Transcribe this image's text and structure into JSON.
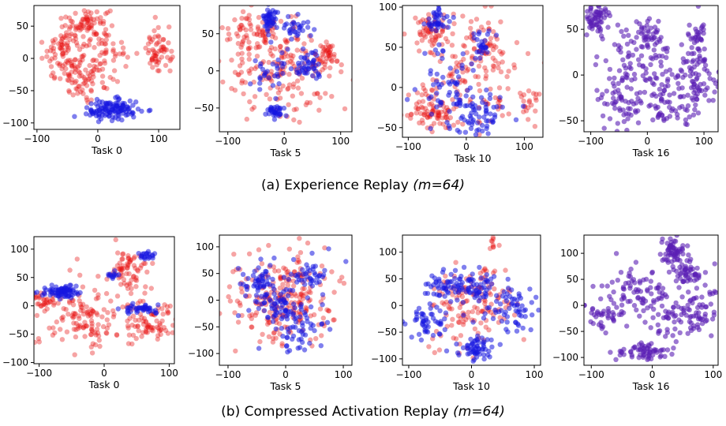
{
  "figure": {
    "row_a_caption": {
      "label": "(a)",
      "name": "Experience Replay",
      "param": "(m=64)"
    },
    "row_b_caption": {
      "label": "(b)",
      "name": "Compressed Activation Replay",
      "param": "(m=64)"
    }
  },
  "chart_data": [
    {
      "type": "scatter",
      "row": "a",
      "xlabel": "Task 0",
      "xlim": [
        -105,
        135
      ],
      "ylim": [
        -110,
        82
      ],
      "xticks": [
        -100,
        0,
        100
      ],
      "yticks": [
        -100,
        -50,
        0,
        50
      ],
      "legend": "none",
      "grid": false,
      "colors": {
        "old": "#e81010",
        "new": "#1616e0"
      },
      "clusters": [
        {
          "group": "old",
          "cx": -15,
          "cy": 55,
          "sx": 18,
          "sy": 12,
          "n": 60
        },
        {
          "group": "old",
          "cx": -55,
          "cy": 15,
          "sx": 18,
          "sy": 22,
          "n": 90
        },
        {
          "group": "old",
          "cx": -20,
          "cy": -30,
          "sx": 25,
          "sy": 15,
          "n": 80
        },
        {
          "group": "old",
          "cx": 100,
          "cy": 10,
          "sx": 10,
          "sy": 18,
          "n": 60
        },
        {
          "group": "old",
          "cx": 20,
          "cy": 25,
          "sx": 22,
          "sy": 18,
          "n": 40
        },
        {
          "group": "new",
          "cx": 25,
          "cy": -80,
          "sx": 22,
          "sy": 8,
          "n": 120
        }
      ]
    },
    {
      "type": "scatter",
      "row": "a",
      "xlabel": "Task 5",
      "xlim": [
        -115,
        120
      ],
      "ylim": [
        -82,
        88
      ],
      "xticks": [
        -100,
        0,
        100
      ],
      "yticks": [
        -50,
        0,
        50
      ],
      "legend": "none",
      "grid": false,
      "colors": {
        "old": "#e81010",
        "new": "#1616e0"
      },
      "clusters": [
        {
          "group": "old",
          "cx": -50,
          "cy": 50,
          "sx": 30,
          "sy": 15,
          "n": 80
        },
        {
          "group": "old",
          "cx": 0,
          "cy": 0,
          "sx": 50,
          "sy": 30,
          "n": 160
        },
        {
          "group": "old",
          "cx": 75,
          "cy": 20,
          "sx": 12,
          "sy": 10,
          "n": 45
        },
        {
          "group": "new",
          "cx": -25,
          "cy": 70,
          "sx": 8,
          "sy": 8,
          "n": 45
        },
        {
          "group": "new",
          "cx": 20,
          "cy": 60,
          "sx": 12,
          "sy": 7,
          "n": 30
        },
        {
          "group": "new",
          "cx": -15,
          "cy": -55,
          "sx": 8,
          "sy": 6,
          "n": 35
        },
        {
          "group": "new",
          "cx": 40,
          "cy": 5,
          "sx": 10,
          "sy": 10,
          "n": 45
        },
        {
          "group": "new",
          "cx": -30,
          "cy": 0,
          "sx": 20,
          "sy": 15,
          "n": 30
        }
      ]
    },
    {
      "type": "scatter",
      "row": "a",
      "xlabel": "Task 10",
      "xlim": [
        -110,
        132
      ],
      "ylim": [
        -62,
        102
      ],
      "xticks": [
        -100,
        0,
        100
      ],
      "yticks": [
        -50,
        0,
        50,
        100
      ],
      "legend": "none",
      "grid": false,
      "colors": {
        "old": "#e81010",
        "new": "#1616e0"
      },
      "clusters": [
        {
          "group": "old",
          "cx": -60,
          "cy": 70,
          "sx": 15,
          "sy": 12,
          "n": 60
        },
        {
          "group": "old",
          "cx": -60,
          "cy": -30,
          "sx": 20,
          "sy": 15,
          "n": 70
        },
        {
          "group": "old",
          "cx": 0,
          "cy": 10,
          "sx": 45,
          "sy": 35,
          "n": 130
        },
        {
          "group": "old",
          "cx": 30,
          "cy": 60,
          "sx": 15,
          "sy": 15,
          "n": 40
        },
        {
          "group": "old",
          "cx": 110,
          "cy": -20,
          "sx": 12,
          "sy": 10,
          "n": 20
        },
        {
          "group": "new",
          "cx": -50,
          "cy": 85,
          "sx": 8,
          "sy": 8,
          "n": 40
        },
        {
          "group": "new",
          "cx": -30,
          "cy": 0,
          "sx": 25,
          "sy": 30,
          "n": 70
        },
        {
          "group": "new",
          "cx": 30,
          "cy": -35,
          "sx": 25,
          "sy": 15,
          "n": 60
        },
        {
          "group": "new",
          "cx": 25,
          "cy": 55,
          "sx": 10,
          "sy": 8,
          "n": 25
        }
      ]
    },
    {
      "type": "scatter",
      "row": "a",
      "xlabel": "Task 16",
      "xlim": [
        -112,
        125
      ],
      "ylim": [
        -62,
        76
      ],
      "xticks": [
        -100,
        0,
        100
      ],
      "yticks": [
        -50,
        0,
        50
      ],
      "legend": "none",
      "grid": false,
      "colors": {
        "old": "#5a1eb4",
        "new": "#5a1eb4"
      },
      "clusters": [
        {
          "group": "old",
          "cx": -90,
          "cy": 60,
          "sx": 10,
          "sy": 8,
          "n": 60
        },
        {
          "group": "old",
          "cx": 0,
          "cy": 45,
          "sx": 10,
          "sy": 10,
          "n": 30
        },
        {
          "group": "old",
          "cx": -30,
          "cy": 20,
          "sx": 25,
          "sy": 20,
          "n": 60
        },
        {
          "group": "old",
          "cx": -50,
          "cy": -30,
          "sx": 25,
          "sy": 15,
          "n": 60
        },
        {
          "group": "old",
          "cx": 20,
          "cy": 0,
          "sx": 15,
          "sy": 25,
          "n": 50
        },
        {
          "group": "old",
          "cx": 90,
          "cy": 30,
          "sx": 10,
          "sy": 15,
          "n": 50
        },
        {
          "group": "old",
          "cx": 90,
          "cy": -10,
          "sx": 20,
          "sy": 15,
          "n": 60
        },
        {
          "group": "old",
          "cx": 40,
          "cy": -40,
          "sx": 25,
          "sy": 8,
          "n": 40
        }
      ]
    },
    {
      "type": "scatter",
      "row": "b",
      "xlabel": "Task 0",
      "xlim": [
        -108,
        108
      ],
      "ylim": [
        -102,
        122
      ],
      "xticks": [
        -100,
        0,
        100
      ],
      "yticks": [
        -100,
        -50,
        0,
        50,
        100
      ],
      "legend": "none",
      "grid": false,
      "colors": {
        "old": "#e81010",
        "new": "#1616e0"
      },
      "clusters": [
        {
          "group": "old",
          "cx": -30,
          "cy": -20,
          "sx": 35,
          "sy": 30,
          "n": 130
        },
        {
          "group": "old",
          "cx": 35,
          "cy": 65,
          "sx": 15,
          "sy": 20,
          "n": 70
        },
        {
          "group": "old",
          "cx": 70,
          "cy": -30,
          "sx": 20,
          "sy": 20,
          "n": 80
        },
        {
          "group": "old",
          "cx": -90,
          "cy": 10,
          "sx": 8,
          "sy": 10,
          "n": 30
        },
        {
          "group": "new",
          "cx": -65,
          "cy": 25,
          "sx": 15,
          "sy": 6,
          "n": 80
        },
        {
          "group": "new",
          "cx": 60,
          "cy": -5,
          "sx": 15,
          "sy": 4,
          "n": 40
        },
        {
          "group": "new",
          "cx": 65,
          "cy": 88,
          "sx": 6,
          "sy": 4,
          "n": 20
        },
        {
          "group": "new",
          "cx": 15,
          "cy": 55,
          "sx": 6,
          "sy": 4,
          "n": 12
        }
      ]
    },
    {
      "type": "scatter",
      "row": "b",
      "xlabel": "Task 5",
      "xlim": [
        -115,
        115
      ],
      "ylim": [
        -122,
        122
      ],
      "xticks": [
        -100,
        0,
        100
      ],
      "yticks": [
        -100,
        -50,
        0,
        50,
        100
      ],
      "legend": "none",
      "grid": false,
      "colors": {
        "old": "#e81010",
        "new": "#1616e0"
      },
      "clusters": [
        {
          "group": "old",
          "cx": 0,
          "cy": 0,
          "sx": 45,
          "sy": 45,
          "n": 240
        },
        {
          "group": "new",
          "cx": -40,
          "cy": 30,
          "sx": 20,
          "sy": 25,
          "n": 60
        },
        {
          "group": "new",
          "cx": 20,
          "cy": -45,
          "sx": 25,
          "sy": 25,
          "n": 70
        },
        {
          "group": "new",
          "cx": 45,
          "cy": 50,
          "sx": 20,
          "sy": 15,
          "n": 40
        },
        {
          "group": "new",
          "cx": -10,
          "cy": -10,
          "sx": 20,
          "sy": 15,
          "n": 40
        }
      ]
    },
    {
      "type": "scatter",
      "row": "b",
      "xlabel": "Task 10",
      "xlim": [
        -110,
        110
      ],
      "ylim": [
        -112,
        132
      ],
      "xticks": [
        -100,
        0,
        100
      ],
      "yticks": [
        -100,
        -50,
        0,
        50,
        100
      ],
      "legend": "none",
      "grid": false,
      "colors": {
        "old": "#e81010",
        "new": "#1616e0"
      },
      "clusters": [
        {
          "group": "old",
          "cx": 0,
          "cy": 0,
          "sx": 35,
          "sy": 40,
          "n": 140
        },
        {
          "group": "old",
          "cx": 35,
          "cy": 115,
          "sx": 4,
          "sy": 6,
          "n": 8
        },
        {
          "group": "new",
          "cx": -35,
          "cy": 40,
          "sx": 20,
          "sy": 15,
          "n": 70
        },
        {
          "group": "new",
          "cx": -70,
          "cy": -30,
          "sx": 15,
          "sy": 20,
          "n": 50
        },
        {
          "group": "new",
          "cx": 10,
          "cy": -80,
          "sx": 15,
          "sy": 12,
          "n": 60
        },
        {
          "group": "new",
          "cx": 70,
          "cy": 0,
          "sx": 20,
          "sy": 25,
          "n": 60
        },
        {
          "group": "new",
          "cx": 20,
          "cy": 30,
          "sx": 15,
          "sy": 15,
          "n": 40
        }
      ]
    },
    {
      "type": "scatter",
      "row": "b",
      "xlabel": "Task 16",
      "xlim": [
        -112,
        108
      ],
      "ylim": [
        -115,
        135
      ],
      "xticks": [
        -100,
        0,
        100
      ],
      "yticks": [
        -100,
        -50,
        0,
        50,
        100
      ],
      "legend": "none",
      "grid": false,
      "colors": {
        "old": "#5a1eb4",
        "new": "#5a1eb4"
      },
      "clusters": [
        {
          "group": "old",
          "cx": 35,
          "cy": 100,
          "sx": 10,
          "sy": 15,
          "n": 60
        },
        {
          "group": "old",
          "cx": 60,
          "cy": 60,
          "sx": 15,
          "sy": 12,
          "n": 50
        },
        {
          "group": "old",
          "cx": -20,
          "cy": 20,
          "sx": 30,
          "sy": 25,
          "n": 80
        },
        {
          "group": "old",
          "cx": -70,
          "cy": -20,
          "sx": 20,
          "sy": 15,
          "n": 40
        },
        {
          "group": "old",
          "cx": -15,
          "cy": -90,
          "sx": 25,
          "sy": 8,
          "n": 60
        },
        {
          "group": "old",
          "cx": 80,
          "cy": -10,
          "sx": 15,
          "sy": 20,
          "n": 50
        },
        {
          "group": "old",
          "cx": 30,
          "cy": -30,
          "sx": 20,
          "sy": 20,
          "n": 50
        }
      ]
    }
  ]
}
